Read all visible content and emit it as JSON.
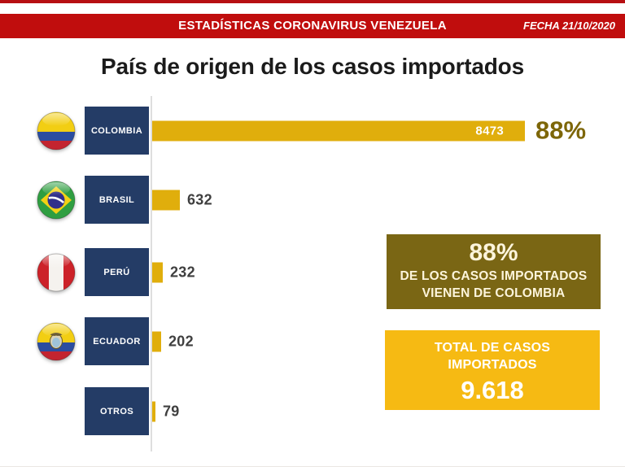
{
  "top_strip_color": "#b70f12",
  "banner": {
    "title": "ESTADÍSTICAS CORONAVIRUS VENEZUELA",
    "date_label": "FECHA 21/10/2020",
    "bg_color": "#c00d0d",
    "text_color": "#ffffff"
  },
  "page_title": "País de origen de los casos importados",
  "chart_data": {
    "type": "bar",
    "orientation": "horizontal",
    "title": "País de origen de los casos importados",
    "categories": [
      "COLOMBIA",
      "BRASIL",
      "PERÚ",
      "ECUADOR",
      "OTROS"
    ],
    "values": [
      8473,
      632,
      232,
      202,
      79
    ],
    "value_labels": [
      "8473",
      "632",
      "232",
      "202",
      "79"
    ],
    "flags": [
      "colombia",
      "brasil",
      "peru",
      "ecuador",
      "none"
    ],
    "max_value": 8473,
    "annotation": "88%",
    "bar_color": "#e0ae0c",
    "category_box_color": "#243c66",
    "value_label_color": "#3f3f3f",
    "grid": false,
    "legend": false
  },
  "highlight_box": {
    "pct": "88%",
    "line1": "DE LOS CASOS IMPORTADOS",
    "line2": "VIENEN DE COLOMBIA",
    "bg_color": "#7a6614",
    "text_color": "#fdf5dc"
  },
  "total_box": {
    "line1": "TOTAL DE CASOS",
    "line2": "IMPORTADOS",
    "value": "9.618",
    "bg_color": "#f6ba13",
    "text_color": "#ffffff"
  }
}
